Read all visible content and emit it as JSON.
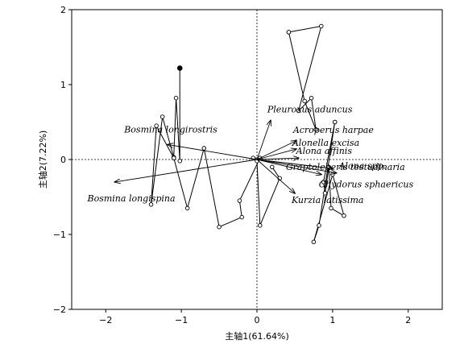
{
  "chart_data": {
    "type": "scatter",
    "xlabel": "主轴1(61.64%)",
    "ylabel": "主轴2(7.22%)",
    "xlim": [
      -2.45,
      2.45
    ],
    "ylim": [
      -2,
      2
    ],
    "xticks": [
      -2,
      -1,
      0,
      1,
      2
    ],
    "yticks": [
      -2,
      -1,
      0,
      1,
      2
    ],
    "grid": false,
    "reference_lines": "dotted at x=0 and y=0",
    "species_vectors": [
      {
        "name": "Pleuroxus aduncus",
        "x": 0.18,
        "y": 0.52
      },
      {
        "name": "Acroperus harpae",
        "x": 0.52,
        "y": 0.25
      },
      {
        "name": "Alonella excisa",
        "x": 0.52,
        "y": 0.14
      },
      {
        "name": "Alona affinis",
        "x": 0.55,
        "y": 0.02
      },
      {
        "name": "Graptoleberis testudinaria",
        "x": 1.0,
        "y": -0.12
      },
      {
        "name": "Alona spp.",
        "x": 1.05,
        "y": -0.18
      },
      {
        "name": "Chydorus sphaericus",
        "x": 0.85,
        "y": -0.2
      },
      {
        "name": "Kurzia latissima",
        "x": 0.5,
        "y": -0.45
      },
      {
        "name": "Bosmina longirostris",
        "x": -1.18,
        "y": 0.2
      },
      {
        "name": "Bosmina longispina",
        "x": -1.88,
        "y": -0.3
      }
    ],
    "site_polygons": [
      {
        "points": [
          [
            -1.02,
            1.22
          ],
          [
            -1.02,
            -0.02
          ],
          [
            -1.07,
            0.82
          ],
          [
            -1.1,
            0.03
          ],
          [
            -1.25,
            0.57
          ],
          [
            -1.4,
            -0.6
          ],
          [
            -1.33,
            0.45
          ],
          [
            -1.1,
            0.02
          ],
          [
            -0.92,
            -0.65
          ],
          [
            -0.7,
            0.15
          ],
          [
            -0.5,
            -0.9
          ],
          [
            -0.2,
            -0.77
          ],
          [
            -0.23,
            -0.55
          ],
          [
            0.04,
            0.02
          ],
          [
            -0.05,
            0.02
          ]
        ]
      },
      {
        "points": [
          [
            0.0,
            -0.02
          ],
          [
            0.04,
            -0.88
          ],
          [
            0.3,
            -0.25
          ],
          [
            0.2,
            -0.1
          ]
        ]
      },
      {
        "points": [
          [
            0.42,
            1.7
          ],
          [
            0.85,
            1.78
          ],
          [
            0.55,
            0.65
          ],
          [
            0.72,
            0.82
          ],
          [
            0.78,
            0.4
          ],
          [
            0.63,
            0.78
          ],
          [
            0.42,
            1.7
          ]
        ]
      },
      {
        "points": [
          [
            1.03,
            0.5
          ],
          [
            0.82,
            -0.88
          ],
          [
            0.75,
            -1.1
          ],
          [
            1.0,
            -0.2
          ],
          [
            1.15,
            -0.75
          ],
          [
            0.98,
            -0.65
          ],
          [
            0.95,
            -0.1
          ],
          [
            0.9,
            -0.45
          ],
          [
            0.88,
            -0.3
          ],
          [
            1.03,
            0.5
          ]
        ]
      }
    ],
    "filled_point": {
      "x": -1.02,
      "y": 1.22
    }
  }
}
